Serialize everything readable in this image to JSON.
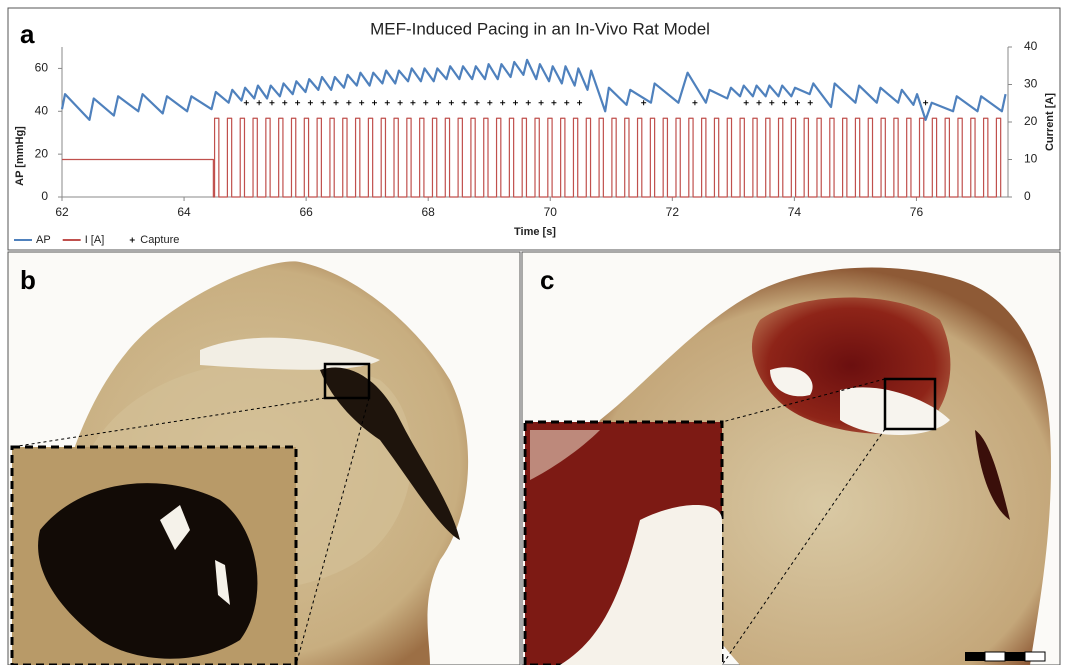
{
  "panel_labels": [
    "a",
    "b",
    "c"
  ],
  "chart_data": {
    "type": "line",
    "title": "MEF-Induced Pacing in an In-Vivo Rat Model",
    "x_label": "Time [s]",
    "y_label": "AP [mmHg]",
    "y2_label": "Current [A]",
    "xlim": [
      62,
      77.5
    ],
    "xticks": [
      62,
      64,
      66,
      68,
      70,
      72,
      74,
      76
    ],
    "ylim": [
      0,
      70
    ],
    "yticks": [
      0,
      20,
      40,
      60
    ],
    "y2lim": [
      0,
      40
    ],
    "y2ticks": [
      0,
      10,
      20,
      30,
      40
    ],
    "grid": false,
    "legend": "lower left",
    "series": [
      {
        "name": "AP",
        "color": "#4f81bd",
        "axis": "y",
        "x": [
          62.0,
          62.05,
          62.45,
          62.52,
          62.85,
          62.92,
          63.25,
          63.32,
          63.65,
          63.72,
          64.05,
          64.12,
          64.45,
          64.52,
          64.73,
          64.79,
          64.94,
          65.0,
          65.15,
          65.21,
          65.36,
          65.42,
          65.57,
          65.63,
          65.78,
          65.84,
          65.99,
          66.05,
          66.2,
          66.26,
          66.41,
          66.47,
          66.62,
          66.68,
          66.83,
          66.89,
          67.04,
          67.1,
          67.25,
          67.31,
          67.46,
          67.52,
          67.67,
          67.73,
          67.88,
          67.94,
          68.09,
          68.15,
          68.3,
          68.36,
          68.51,
          68.57,
          68.72,
          68.78,
          68.93,
          68.99,
          69.14,
          69.2,
          69.35,
          69.41,
          69.56,
          69.62,
          69.77,
          69.83,
          69.98,
          70.04,
          70.19,
          70.25,
          70.4,
          70.46,
          70.61,
          70.67,
          70.9,
          70.96,
          71.25,
          71.31,
          71.65,
          71.71,
          72.1,
          72.25,
          72.55,
          72.61,
          72.9,
          72.96,
          73.11,
          73.17,
          73.32,
          73.38,
          73.53,
          73.59,
          73.74,
          73.8,
          73.95,
          74.01,
          74.25,
          74.31,
          74.6,
          74.66,
          75.0,
          75.06,
          75.35,
          75.41,
          75.7,
          75.76,
          75.95,
          76.01,
          76.15,
          76.25,
          76.6,
          76.66,
          77.0,
          77.06,
          77.4,
          77.46
        ],
        "values": [
          41,
          48,
          36,
          46,
          38,
          47,
          40,
          48,
          39,
          47,
          40,
          47,
          41,
          49,
          44,
          50,
          45,
          51,
          46,
          52,
          46,
          52,
          47,
          53,
          48,
          54,
          49,
          55,
          50,
          56,
          50,
          56,
          51,
          57,
          52,
          58,
          52,
          58,
          53,
          59,
          53,
          59,
          54,
          60,
          54,
          60,
          54,
          60,
          55,
          61,
          55,
          61,
          55,
          61,
          55,
          62,
          55,
          62,
          56,
          63,
          57,
          64,
          55,
          62,
          54,
          61,
          53,
          61,
          52,
          60,
          50,
          59,
          40,
          51,
          43,
          50,
          44,
          53,
          44,
          58,
          44,
          50,
          46,
          51,
          47,
          52,
          47,
          52,
          47,
          52,
          47,
          52,
          47,
          51,
          48,
          53,
          42,
          53,
          44,
          52,
          44,
          51,
          44,
          50,
          43,
          48,
          36,
          44,
          40,
          47,
          40,
          47,
          40,
          48
        ]
      },
      {
        "name": "I [A]",
        "color": "#c0504d",
        "axis": "y2",
        "step": true,
        "x": [
          62,
          64.48,
          64.5,
          64.57,
          64.71,
          64.78,
          64.92,
          64.99,
          65.13,
          65.2,
          65.34,
          65.41,
          65.55,
          65.62,
          65.76,
          65.83,
          65.97,
          66.04,
          66.18,
          66.25,
          66.39,
          66.46,
          66.6,
          66.67,
          66.81,
          66.88,
          67.02,
          67.09,
          67.23,
          67.3,
          67.44,
          67.51,
          67.65,
          67.72,
          67.86,
          67.93,
          68.07,
          68.14,
          68.28,
          68.35,
          68.49,
          68.56,
          68.7,
          68.77,
          68.91,
          68.98,
          69.12,
          69.19,
          69.33,
          69.4,
          69.54,
          69.61,
          69.75,
          69.82,
          69.96,
          70.03,
          70.17,
          70.24,
          70.38,
          70.45,
          70.59,
          70.66,
          70.8,
          70.87,
          71.01,
          71.08,
          71.22,
          71.29,
          71.43,
          71.5,
          71.64,
          71.71,
          71.85,
          71.92,
          72.06,
          72.13,
          72.27,
          72.34,
          72.48,
          72.55,
          72.69,
          72.76,
          72.9,
          72.97,
          73.11,
          73.18,
          73.32,
          73.39,
          73.53,
          73.6,
          73.74,
          73.81,
          73.95,
          74.02,
          74.16,
          74.23,
          74.37,
          74.44,
          74.58,
          74.65,
          74.79,
          74.86,
          75.0,
          75.07,
          75.21,
          75.28,
          75.42,
          75.49,
          75.63,
          75.7,
          75.84,
          75.91,
          76.05,
          76.12,
          76.26,
          76.33,
          76.47,
          76.54,
          76.68,
          76.75,
          76.89,
          76.96,
          77.1,
          77.17,
          77.31,
          77.38
        ],
        "values": [
          10,
          0,
          21,
          0,
          21,
          0,
          21,
          0,
          21,
          0,
          21,
          0,
          21,
          0,
          21,
          0,
          21,
          0,
          21,
          0,
          21,
          0,
          21,
          0,
          21,
          0,
          21,
          0,
          21,
          0,
          21,
          0,
          21,
          0,
          21,
          0,
          21,
          0,
          21,
          0,
          21,
          0,
          21,
          0,
          21,
          0,
          21,
          0,
          21,
          0,
          21,
          0,
          21,
          0,
          21,
          0,
          21,
          0,
          21,
          0,
          21,
          0,
          21,
          0,
          21,
          0,
          21,
          0,
          21,
          0,
          21,
          0,
          21,
          0,
          21,
          0,
          21,
          0,
          21,
          0,
          21,
          0,
          21,
          0,
          21,
          0,
          21,
          0,
          21,
          0,
          21,
          0,
          21,
          0,
          21,
          0,
          21,
          0,
          21,
          0,
          21,
          0,
          21,
          0,
          21,
          0,
          21,
          0,
          21,
          0,
          21,
          0,
          21,
          0,
          21,
          0,
          21,
          0,
          21,
          0,
          21,
          0,
          21,
          0,
          21,
          0
        ]
      },
      {
        "name": "Capture",
        "color": "#000000",
        "axis": "y",
        "line": false,
        "marker": "+",
        "x": [
          65.02,
          65.23,
          65.44,
          65.65,
          65.86,
          66.07,
          66.28,
          66.49,
          66.7,
          66.91,
          67.12,
          67.33,
          67.54,
          67.75,
          67.96,
          68.17,
          68.38,
          68.59,
          68.8,
          69.01,
          69.22,
          69.43,
          69.64,
          69.85,
          70.06,
          70.27,
          70.48,
          71.53,
          72.37,
          73.21,
          73.42,
          73.63,
          73.84,
          74.05,
          74.26,
          76.15
        ],
        "values": [
          44,
          44,
          44,
          44,
          44,
          44,
          44,
          44,
          44,
          44,
          44,
          44,
          44,
          44,
          44,
          44,
          44,
          44,
          44,
          44,
          44,
          44,
          44,
          44,
          44,
          44,
          44,
          44,
          44,
          44,
          44,
          44,
          44,
          44,
          44,
          44
        ]
      }
    ]
  }
}
